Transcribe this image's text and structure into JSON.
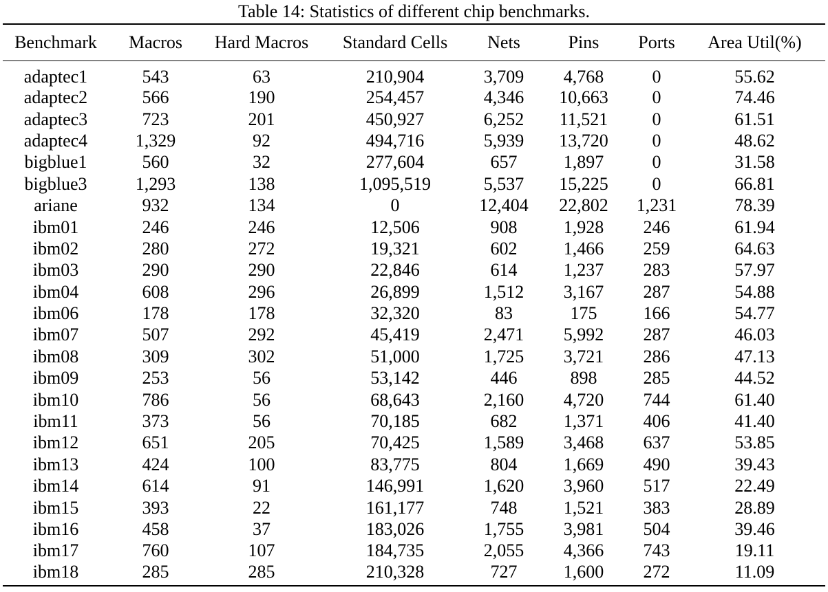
{
  "caption": "Table 14: Statistics of different chip benchmarks.",
  "headers": [
    "Benchmark",
    "Macros",
    "Hard Macros",
    "Standard Cells",
    "Nets",
    "Pins",
    "Ports",
    "Area Util(%)"
  ],
  "rows": [
    [
      "adaptec1",
      "543",
      "63",
      "210,904",
      "3,709",
      "4,768",
      "0",
      "55.62"
    ],
    [
      "adaptec2",
      "566",
      "190",
      "254,457",
      "4,346",
      "10,663",
      "0",
      "74.46"
    ],
    [
      "adaptec3",
      "723",
      "201",
      "450,927",
      "6,252",
      "11,521",
      "0",
      "61.51"
    ],
    [
      "adaptec4",
      "1,329",
      "92",
      "494,716",
      "5,939",
      "13,720",
      "0",
      "48.62"
    ],
    [
      "bigblue1",
      "560",
      "32",
      "277,604",
      "657",
      "1,897",
      "0",
      "31.58"
    ],
    [
      "bigblue3",
      "1,293",
      "138",
      "1,095,519",
      "5,537",
      "15,225",
      "0",
      "66.81"
    ],
    [
      "ariane",
      "932",
      "134",
      "0",
      "12,404",
      "22,802",
      "1,231",
      "78.39"
    ],
    [
      "ibm01",
      "246",
      "246",
      "12,506",
      "908",
      "1,928",
      "246",
      "61.94"
    ],
    [
      "ibm02",
      "280",
      "272",
      "19,321",
      "602",
      "1,466",
      "259",
      "64.63"
    ],
    [
      "ibm03",
      "290",
      "290",
      "22,846",
      "614",
      "1,237",
      "283",
      "57.97"
    ],
    [
      "ibm04",
      "608",
      "296",
      "26,899",
      "1,512",
      "3,167",
      "287",
      "54.88"
    ],
    [
      "ibm06",
      "178",
      "178",
      "32,320",
      "83",
      "175",
      "166",
      "54.77"
    ],
    [
      "ibm07",
      "507",
      "292",
      "45,419",
      "2,471",
      "5,992",
      "287",
      "46.03"
    ],
    [
      "ibm08",
      "309",
      "302",
      "51,000",
      "1,725",
      "3,721",
      "286",
      "47.13"
    ],
    [
      "ibm09",
      "253",
      "56",
      "53,142",
      "446",
      "898",
      "285",
      "44.52"
    ],
    [
      "ibm10",
      "786",
      "56",
      "68,643",
      "2,160",
      "4,720",
      "744",
      "61.40"
    ],
    [
      "ibm11",
      "373",
      "56",
      "70,185",
      "682",
      "1,371",
      "406",
      "41.40"
    ],
    [
      "ibm12",
      "651",
      "205",
      "70,425",
      "1,589",
      "3,468",
      "637",
      "53.85"
    ],
    [
      "ibm13",
      "424",
      "100",
      "83,775",
      "804",
      "1,669",
      "490",
      "39.43"
    ],
    [
      "ibm14",
      "614",
      "91",
      "146,991",
      "1,620",
      "3,960",
      "517",
      "22.49"
    ],
    [
      "ibm15",
      "393",
      "22",
      "161,177",
      "748",
      "1,521",
      "383",
      "28.89"
    ],
    [
      "ibm16",
      "458",
      "37",
      "183,026",
      "1,755",
      "3,981",
      "504",
      "39.46"
    ],
    [
      "ibm17",
      "760",
      "107",
      "184,735",
      "2,055",
      "4,366",
      "743",
      "19.11"
    ],
    [
      "ibm18",
      "285",
      "285",
      "210,328",
      "727",
      "1,600",
      "272",
      "11.09"
    ]
  ]
}
